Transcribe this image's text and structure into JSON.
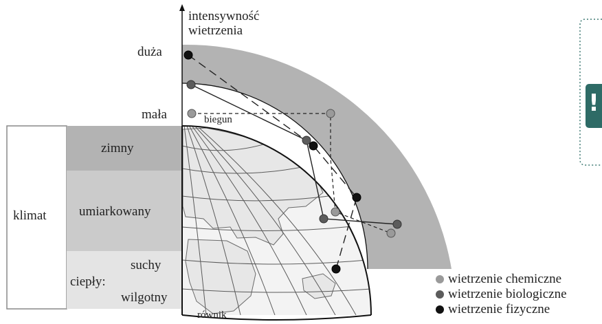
{
  "axis": {
    "title_line1": "intensywność",
    "title_line2": "wietrzenia",
    "high": "duża",
    "low": "mała"
  },
  "globe": {
    "pole": "biegun",
    "equator": "równik"
  },
  "climate": {
    "title": "klimat",
    "zones": [
      {
        "label": "zimny",
        "color": "#b3b3b3"
      },
      {
        "label": "umiarkowany",
        "color": "#cbcbcb"
      },
      {
        "label": "ciepły:",
        "color": "#e4e4e4",
        "subzones": [
          "suchy",
          "wilgotny"
        ]
      }
    ]
  },
  "legend": [
    {
      "label": "wietrzenie chemiczne",
      "color": "#9a9a9a"
    },
    {
      "label": "wietrzenie biologiczne",
      "color": "#5c5c5c"
    },
    {
      "label": "wietrzenie fizyczne",
      "color": "#111111"
    }
  ],
  "note_badge": {
    "icon": "exclamation-icon",
    "symbol": "!",
    "color": "#2e6b66"
  }
}
